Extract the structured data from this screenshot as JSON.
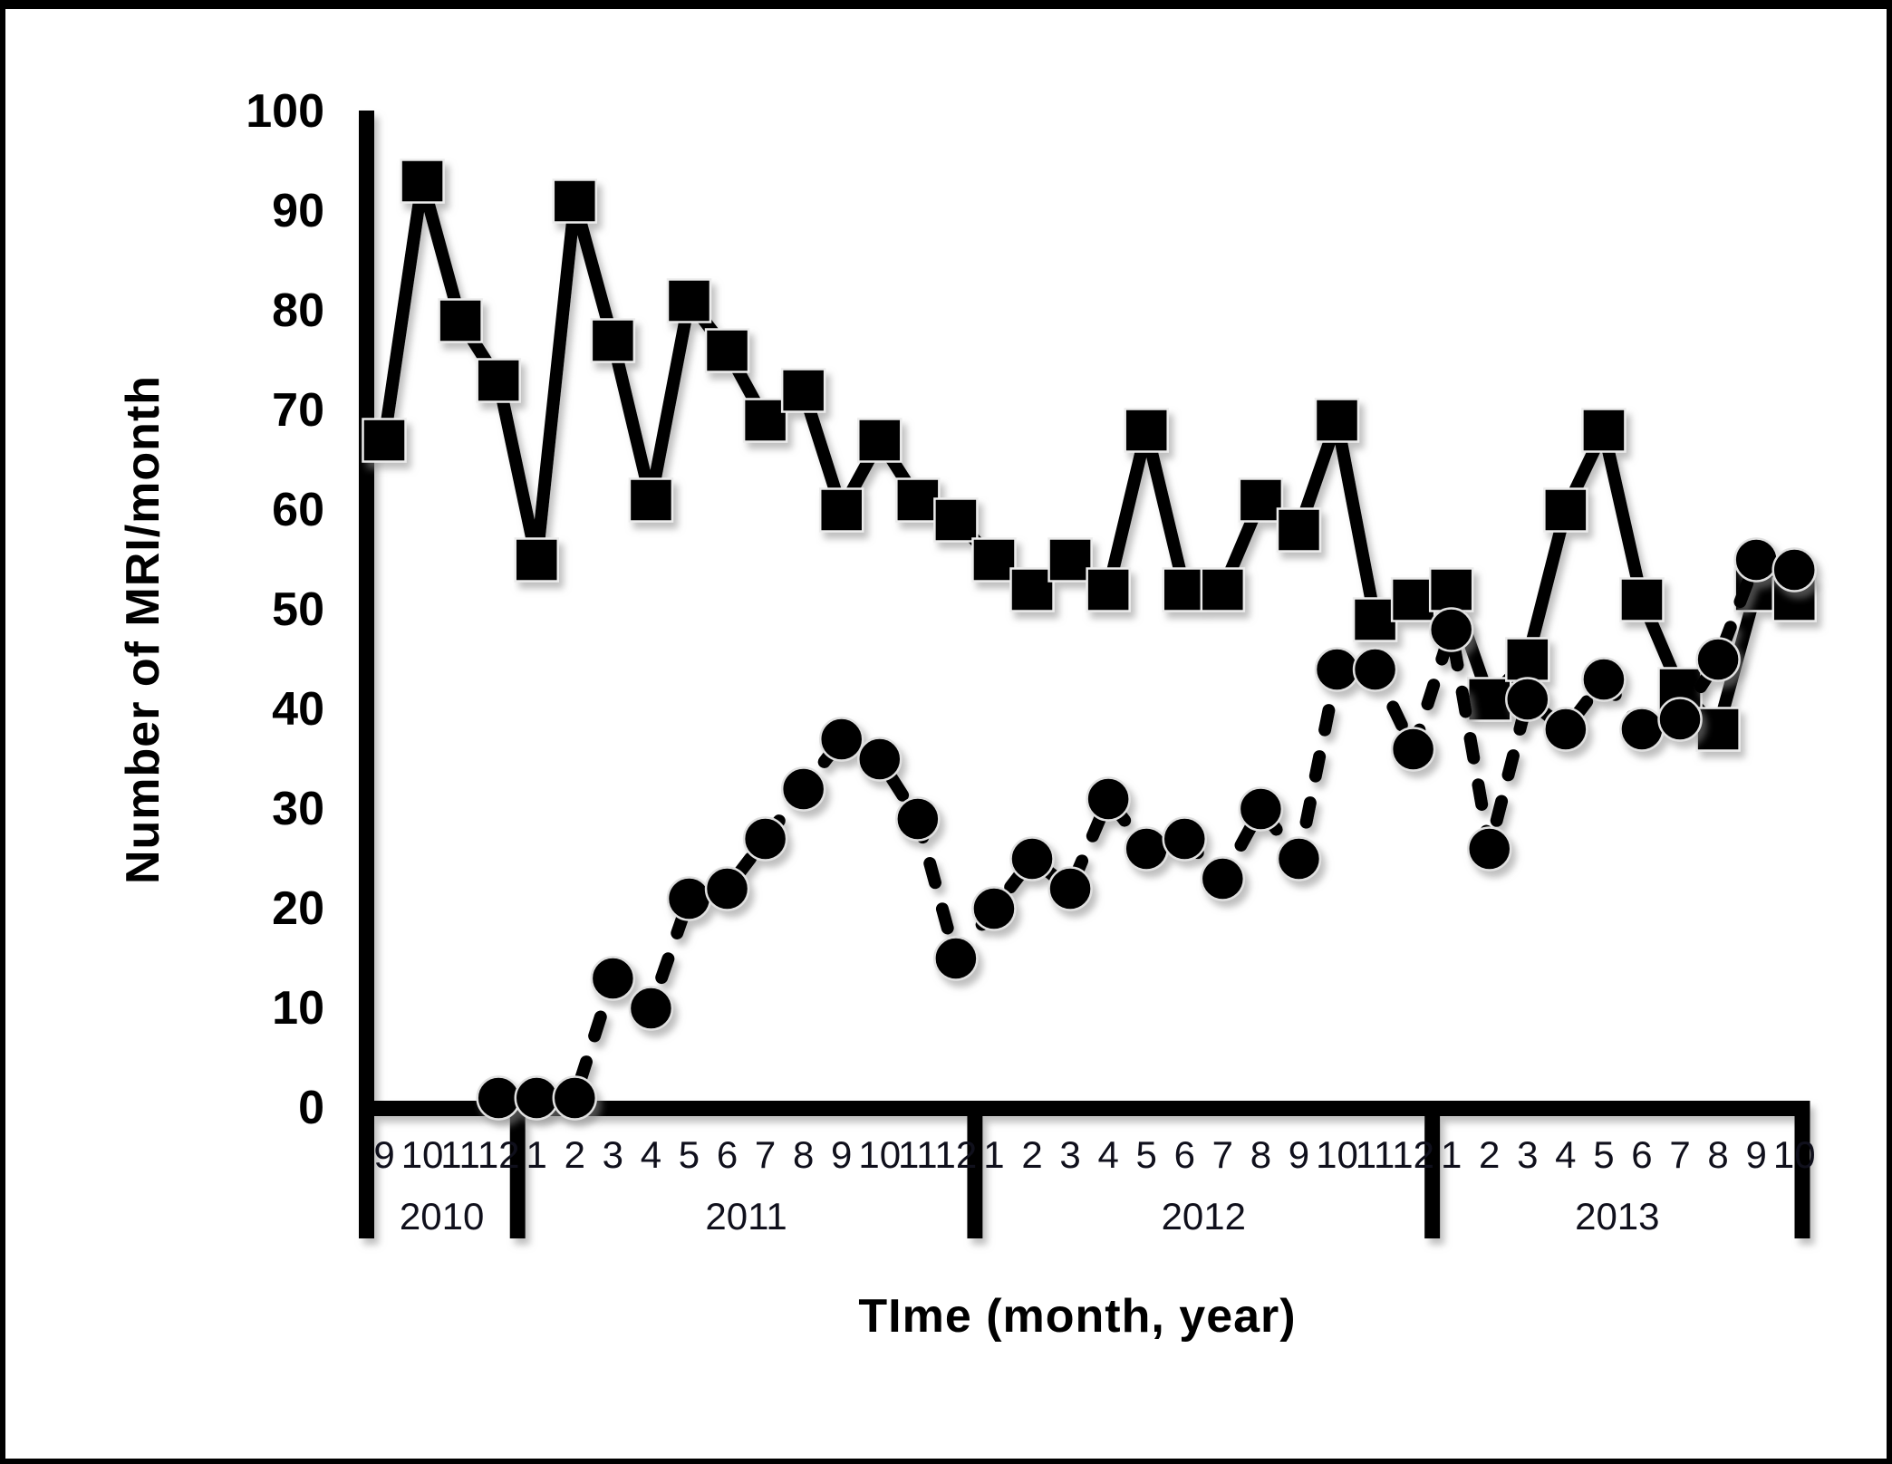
{
  "chart_data": {
    "type": "line",
    "title": "",
    "xlabel": "TIme (month, year)",
    "ylabel": "Number of MRI/month",
    "ylim": [
      0,
      100
    ],
    "yticks": [
      "0",
      "10",
      "20",
      "30",
      "40",
      "50",
      "60",
      "70",
      "80",
      "90",
      "100"
    ],
    "grid": false,
    "legend": "none",
    "x_axis_years": [
      {
        "year": "2010",
        "months": [
          "9",
          "10",
          "11",
          "12"
        ]
      },
      {
        "year": "2011",
        "months": [
          "1",
          "2",
          "3",
          "4",
          "5",
          "6",
          "7",
          "8",
          "9",
          "10",
          "11",
          "12"
        ]
      },
      {
        "year": "2012",
        "months": [
          "1",
          "2",
          "3",
          "4",
          "5",
          "6",
          "7",
          "8",
          "9",
          "10",
          "11",
          "12"
        ]
      },
      {
        "year": "2013",
        "months": [
          "1",
          "2",
          "3",
          "4",
          "5",
          "6",
          "7",
          "8",
          "9",
          "10"
        ]
      }
    ],
    "series": [
      {
        "name": "squares-solid",
        "marker": "square",
        "line": "solid",
        "values": [
          67,
          93,
          79,
          73,
          55,
          91,
          77,
          61,
          81,
          76,
          69,
          72,
          60,
          67,
          61,
          59,
          55,
          52,
          55,
          52,
          68,
          52,
          52,
          61,
          58,
          69,
          49,
          51,
          52,
          41,
          45,
          60,
          68,
          51,
          42,
          38,
          52,
          51
        ]
      },
      {
        "name": "circles-dashed",
        "marker": "circle",
        "line": "dashed",
        "values": [
          null,
          null,
          null,
          1,
          1,
          1,
          13,
          10,
          21,
          22,
          27,
          32,
          37,
          35,
          29,
          15,
          20,
          25,
          22,
          31,
          26,
          27,
          23,
          30,
          25,
          44,
          44,
          36,
          48,
          26,
          41,
          38,
          43,
          38,
          39,
          45,
          55,
          54
        ]
      }
    ]
  }
}
